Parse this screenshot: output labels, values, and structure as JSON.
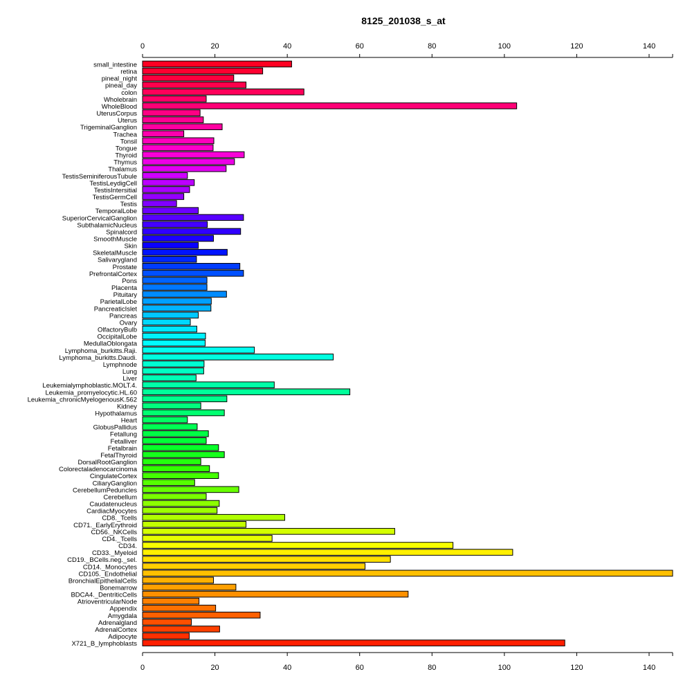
{
  "chart_data": {
    "type": "bar",
    "orientation": "horizontal",
    "title": "8125_201038_s_at",
    "xlabel": "",
    "ylabel": "",
    "xlim": [
      0,
      146.5
    ],
    "xticks": [
      0,
      20,
      40,
      60,
      80,
      100,
      120,
      140
    ],
    "grid": false,
    "legend": "none",
    "categories": [
      "small_intestine",
      "retina",
      "pineal_night",
      "pineal_day",
      "colon",
      "Wholebrain",
      "WholeBlood",
      "UterusCorpus",
      "Uterus",
      "TrigeminalGanglion",
      "Trachea",
      "Tonsil",
      "Tongue",
      "Thyroid",
      "Thymus",
      "Thalamus",
      "TestisSeminiferousTubule",
      "TestisLeydigCell",
      "TestisIntersitial",
      "TestisGermCell",
      "Testis",
      "TemporalLobe",
      "SuperiorCervicalGanglion",
      "SubthalamicNucleus",
      "Spinalcord",
      "SmoothMuscle",
      "Skin",
      "SkeletalMuscle",
      "Salivarygland",
      "Prostate",
      "PrefrontalCortex",
      "Pons",
      "Placenta",
      "Pituitary",
      "ParietalLobe",
      "PancreaticIslet",
      "Pancreas",
      "Ovary",
      "OlfactoryBulb",
      "OccipitalLobe",
      "MedullaOblongata",
      "Lymphoma_burkitts.Raji.",
      "Lymphoma_burkitts.Daudi.",
      "Lymphnode",
      "Lung",
      "Liver",
      "Leukemialymphoblastic.MOLT.4.",
      "Leukemia_promyelocytic.HL.60",
      "Leukemia_chronicMyelogenousK.562",
      "Kidney",
      "Hypothalamus",
      "Heart",
      "GlobusPallidus",
      "Fetallung",
      "Fetalliver",
      "Fetalbrain",
      "FetalThyroid",
      "DorsalRootGanglion",
      "Colorectaladenocarcinoma",
      "CingulateCortex",
      "CiliaryGanglion",
      "CerebellumPeduncles",
      "Cerebellum",
      "Caudatenucleus",
      "CardiacMyocytes",
      "CD8._Tcells",
      "CD71._EarlyErythroid",
      "CD56._NKCells",
      "CD4._Tcells",
      "CD34.",
      "CD33._Myeloid",
      "CD19._BCells.neg._sel.",
      "CD14._Monocytes",
      "CD105._Endothelial",
      "BronchialEpithelialCells",
      "Bonemarrow",
      "BDCA4._DentriticCells",
      "AtrioventricularNode",
      "Appendix",
      "Amygdala",
      "Adrenalgland",
      "AdrenalCortex",
      "Adipocyte",
      "X721_B_lymphoblasts"
    ],
    "values": [
      41.2,
      33.2,
      25.2,
      28.6,
      44.6,
      17.6,
      103.4,
      15.9,
      16.8,
      22.0,
      11.4,
      19.7,
      19.5,
      28.1,
      25.4,
      23.1,
      12.4,
      14.3,
      13.0,
      11.4,
      9.4,
      15.4,
      27.9,
      17.9,
      27.1,
      19.6,
      15.4,
      23.4,
      14.9,
      26.9,
      27.9,
      17.8,
      17.8,
      23.2,
      19.0,
      18.9,
      15.4,
      13.2,
      15.0,
      17.4,
      17.3,
      30.9,
      52.7,
      17.0,
      16.9,
      14.8,
      36.4,
      57.3,
      23.3,
      16.1,
      22.6,
      12.4,
      15.1,
      18.2,
      17.6,
      21.0,
      22.6,
      16.1,
      18.5,
      21.0,
      14.4,
      26.6,
      17.6,
      21.2,
      20.6,
      39.3,
      28.6,
      69.7,
      35.8,
      85.8,
      102.3,
      68.5,
      61.5,
      146.5,
      19.6,
      25.8,
      73.4,
      15.6,
      20.2,
      32.5,
      13.5,
      21.3,
      12.9,
      116.7
    ],
    "colors": [
      "#ff0022",
      "#ff0030",
      "#ff003e",
      "#ff004c",
      "#ff005a",
      "#ff0068",
      "#ff0076",
      "#ff0084",
      "#ff0092",
      "#ff00a0",
      "#ff00ae",
      "#ff00bc",
      "#ff00ca",
      "#f800d8",
      "#ec00e6",
      "#e000f2",
      "#d000ff",
      "#bc00ff",
      "#a800ff",
      "#9400ff",
      "#8000ff",
      "#6c00ff",
      "#5800ff",
      "#4400ff",
      "#3000ff",
      "#1c00ff",
      "#0a00ff",
      "#0014ff",
      "#0028ff",
      "#003cff",
      "#0050ff",
      "#0064ff",
      "#0078ff",
      "#008cff",
      "#00a0ff",
      "#00b4ff",
      "#00c8ff",
      "#00d8ff",
      "#00e6ff",
      "#00f2ff",
      "#00fcff",
      "#00ffef",
      "#00ffe0",
      "#00ffd2",
      "#00ffc4",
      "#00ffb6",
      "#00ffa8",
      "#00ff9a",
      "#00ff8c",
      "#00ff7e",
      "#00ff70",
      "#00ff62",
      "#00ff54",
      "#00ff46",
      "#00ff38",
      "#08ff2a",
      "#16ff1c",
      "#24ff0e",
      "#32ff00",
      "#44ff00",
      "#56ff00",
      "#68ff00",
      "#7aff00",
      "#8cff00",
      "#9eff00",
      "#b0ff00",
      "#c2ff00",
      "#d4ff00",
      "#e6ff00",
      "#f8ff00",
      "#fff000",
      "#ffe000",
      "#ffd000",
      "#ffc000",
      "#ffb000",
      "#ffa000",
      "#ff9000",
      "#ff8000",
      "#ff7000",
      "#ff6000",
      "#ff5000",
      "#ff4000",
      "#ff3000",
      "#ff1f00"
    ]
  }
}
